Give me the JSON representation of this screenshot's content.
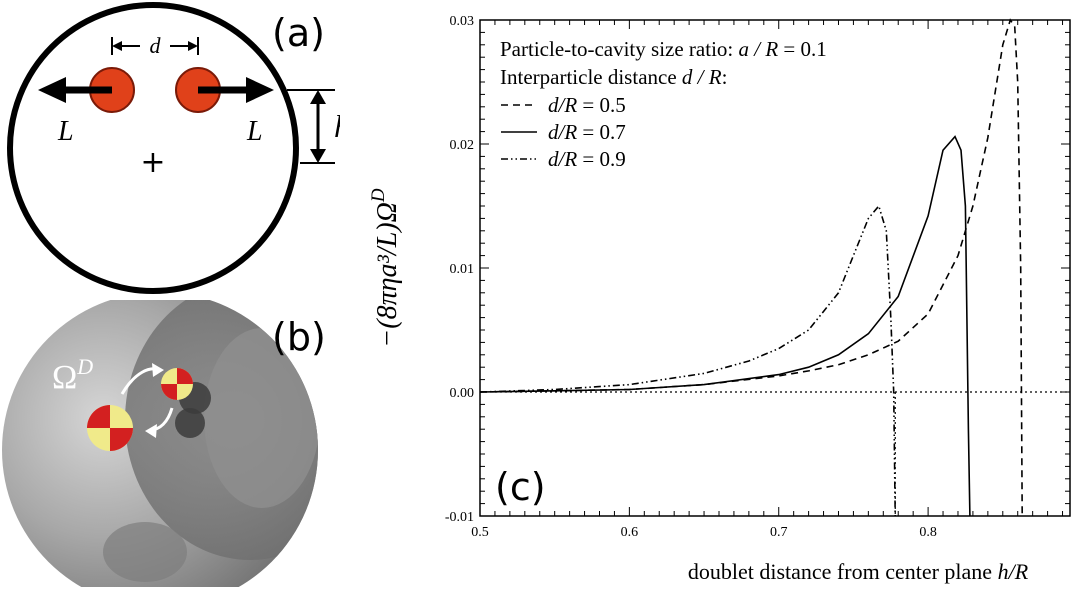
{
  "panel_a": {
    "label": "(a)",
    "d_label": "d",
    "L_left": "L",
    "L_right": "L",
    "h_label": "h",
    "center_marker": "+"
  },
  "panel_b": {
    "label": "(b)",
    "omega_symbol": "Ω",
    "omega_sup": "D"
  },
  "colors": {
    "particle": "#e0411a",
    "particle_edge": "#7a1a08",
    "sphere_gray": "#9a9a9a",
    "curve": "#000000"
  },
  "chart_data": {
    "type": "line",
    "panel_label": "(c)",
    "xlabel_prefix": "doublet distance from center plane ",
    "xlabel_var": "h/R",
    "ylabel": "−(8πηa³/L)Ω",
    "ylabel_sup": "D",
    "xlim": [
      0.5,
      0.895
    ],
    "ylim": [
      -0.01,
      0.03
    ],
    "xticks": [
      "0.5",
      "0.6",
      "0.7",
      "0.8"
    ],
    "yticks": [
      "-0.01",
      "0.00",
      "0.01",
      "0.02",
      "0.03"
    ],
    "grid": false,
    "legend_position": "top-left",
    "annotations": {
      "line1_prefix": "Particle-to-cavity size ratio: ",
      "line1_var": "a / R",
      "line1_value": " = 0.1",
      "line2_prefix": "Interparticle distance ",
      "line2_var": "d / R",
      "line2_suffix": ":"
    },
    "series": [
      {
        "name": "d/R = 0.5",
        "legend_var": "d/R",
        "legend_value": " = 0.5",
        "style": "dashed",
        "x": [
          0.5,
          0.55,
          0.6,
          0.65,
          0.7,
          0.72,
          0.74,
          0.76,
          0.78,
          0.8,
          0.82,
          0.83,
          0.84,
          0.85,
          0.855,
          0.858,
          0.86,
          0.862,
          0.863
        ],
        "y": [
          0.0,
          0.0001,
          0.0002,
          0.0006,
          0.0013,
          0.0017,
          0.0022,
          0.003,
          0.0041,
          0.0063,
          0.011,
          0.015,
          0.0205,
          0.028,
          0.03,
          0.0295,
          0.025,
          0.01,
          -0.01
        ]
      },
      {
        "name": "d/R = 0.7",
        "legend_var": "d/R",
        "legend_value": " = 0.7",
        "style": "solid",
        "x": [
          0.5,
          0.55,
          0.6,
          0.65,
          0.7,
          0.72,
          0.74,
          0.76,
          0.78,
          0.8,
          0.81,
          0.818,
          0.822,
          0.825,
          0.826,
          0.827,
          0.828
        ],
        "y": [
          0.0,
          0.0001,
          0.0002,
          0.0006,
          0.0014,
          0.002,
          0.003,
          0.0047,
          0.0077,
          0.0142,
          0.0195,
          0.0206,
          0.0195,
          0.015,
          0.006,
          -0.003,
          -0.01
        ]
      },
      {
        "name": "d/R = 0.9",
        "legend_var": "d/R",
        "legend_value": " = 0.9",
        "style": "dashdotdot",
        "x": [
          0.5,
          0.55,
          0.6,
          0.65,
          0.68,
          0.7,
          0.72,
          0.74,
          0.75,
          0.76,
          0.767,
          0.772,
          0.775,
          0.777,
          0.778
        ],
        "y": [
          0.0,
          0.0002,
          0.0006,
          0.0015,
          0.0025,
          0.0035,
          0.005,
          0.008,
          0.011,
          0.014,
          0.015,
          0.013,
          0.006,
          0.0,
          -0.01
        ]
      },
      {
        "name": "zero",
        "style": "dotted",
        "x": [
          0.5,
          0.895
        ],
        "y": [
          0,
          0
        ]
      }
    ],
    "vertical_reference": {
      "x": 0.778,
      "style": "dotted"
    }
  }
}
